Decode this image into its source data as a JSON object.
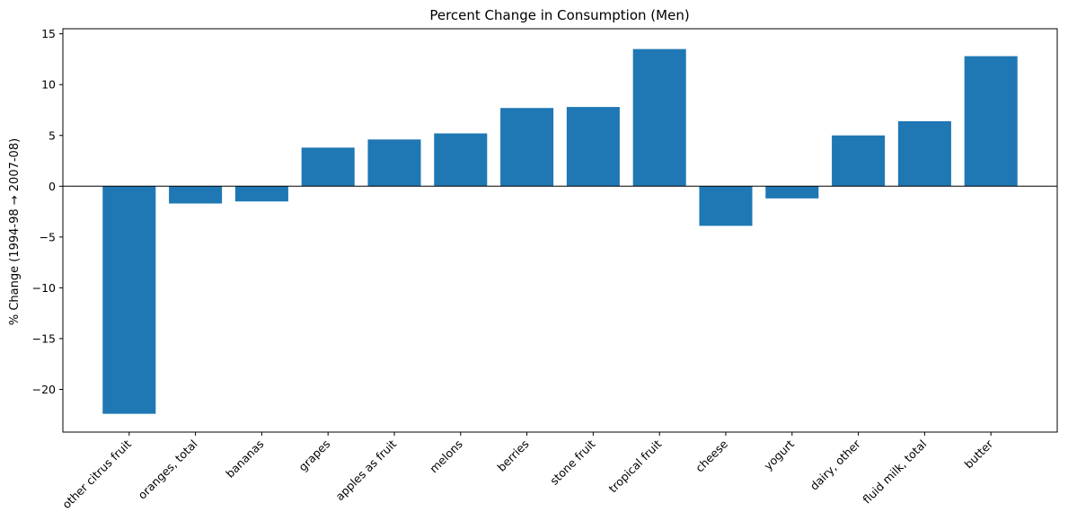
{
  "chart_data": {
    "type": "bar",
    "title": "Percent Change in Consumption (Men)",
    "xlabel": "",
    "ylabel": "% Change (1994-98 → 2007-08)",
    "categories": [
      "other citrus fruit",
      "oranges, total",
      "bananas",
      "grapes",
      "apples as fruit",
      "melons",
      "berries",
      "stone fruit",
      "tropical fruit",
      "cheese",
      "yogurt",
      "dairy, other",
      "fluid milk, total",
      "butter"
    ],
    "values": [
      -22.4,
      -1.7,
      -1.5,
      3.8,
      4.6,
      5.2,
      7.7,
      7.8,
      13.5,
      -3.9,
      -1.2,
      5.0,
      6.4,
      12.8
    ],
    "ylim": [
      -24.2,
      15.5
    ],
    "yticks": [
      -20,
      -15,
      -10,
      -5,
      0,
      5,
      10,
      15
    ],
    "ytick_labels": [
      "−20",
      "−15",
      "−10",
      "−5",
      "0",
      "5",
      "10",
      "15"
    ],
    "colors": {
      "bar": "#1f77b4",
      "zero_line": "#000000",
      "axis": "#000000"
    },
    "grid": false,
    "legend": "none",
    "zero_line": true
  }
}
